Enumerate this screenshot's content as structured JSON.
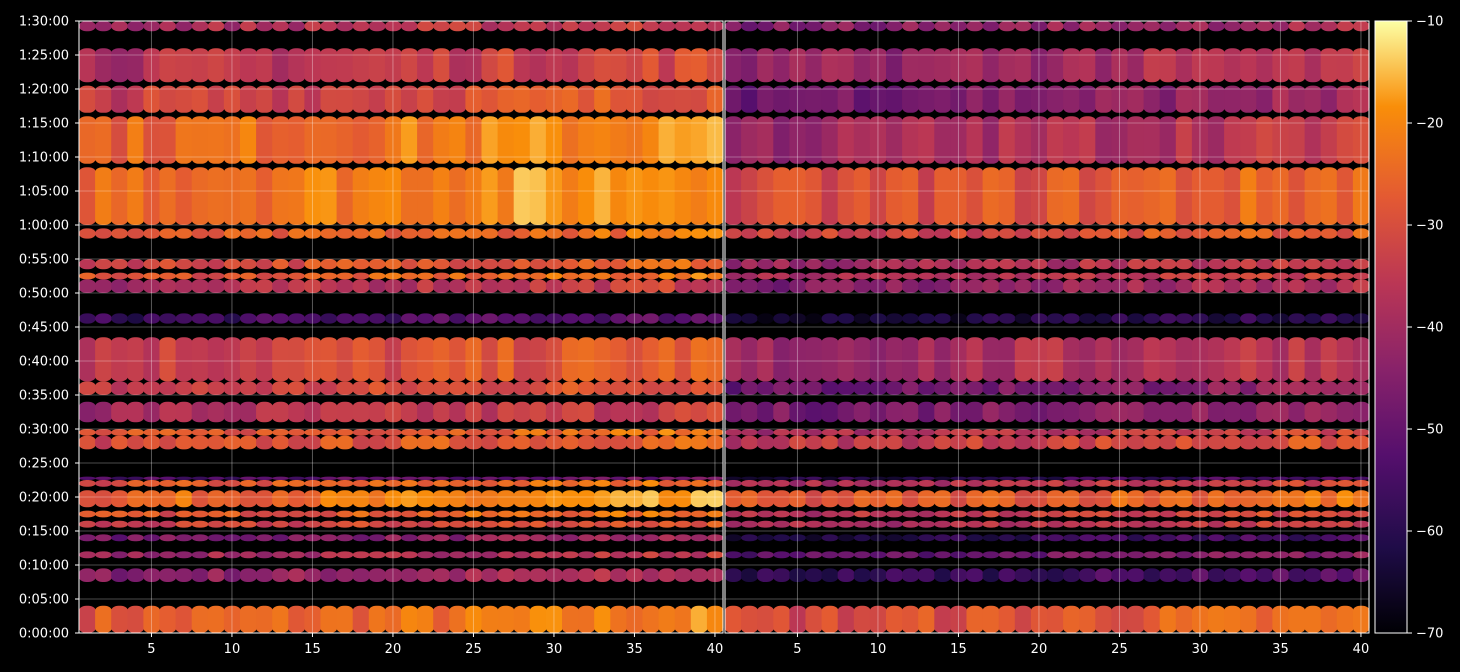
{
  "chart_data": {
    "type": "heatmap",
    "title": "",
    "panels": [
      {
        "name": "",
        "x": {
          "min": 1,
          "max": 40,
          "ticks": [
            5,
            10,
            15,
            20,
            25,
            30,
            35,
            40
          ]
        }
      },
      {
        "name": "",
        "x": {
          "min": 1,
          "max": 40,
          "ticks": [
            5,
            10,
            15,
            20,
            25,
            30,
            35,
            40
          ]
        }
      }
    ],
    "y": {
      "min_seconds": 0,
      "max_seconds": 5400,
      "tick_labels": [
        "0:00:00",
        "0:05:00",
        "0:10:00",
        "0:15:00",
        "0:20:00",
        "0:25:00",
        "0:30:00",
        "0:35:00",
        "0:40:00",
        "0:45:00",
        "0:50:00",
        "0:55:00",
        "1:00:00",
        "1:05:00",
        "1:10:00",
        "1:15:00",
        "1:20:00",
        "1:25:00",
        "1:30:00"
      ]
    },
    "colorbar": {
      "min": -70,
      "max": -10,
      "ticks": [
        -10,
        -20,
        -30,
        -40,
        -50,
        -60,
        -70
      ],
      "colormap": "inferno"
    },
    "grid": true,
    "row_bands": [
      {
        "start": "0:00:00",
        "end": "0:04:00",
        "level_left": -28,
        "level_right": -32
      },
      {
        "start": "0:07:30",
        "end": "0:09:30",
        "level_left": -45,
        "level_right": -60
      },
      {
        "start": "0:11:00",
        "end": "0:12:00",
        "level_left": -42,
        "level_right": -52
      },
      {
        "start": "0:13:30",
        "end": "0:14:30",
        "level_left": -48,
        "level_right": -62
      },
      {
        "start": "0:15:30",
        "end": "0:16:30",
        "level_left": -35,
        "level_right": -40
      },
      {
        "start": "0:17:00",
        "end": "0:18:00",
        "level_left": -30,
        "level_right": -38
      },
      {
        "start": "0:18:30",
        "end": "0:21:00",
        "level_left": -26,
        "level_right": -30
      },
      {
        "start": "0:21:30",
        "end": "0:22:30",
        "level_left": -30,
        "level_right": -40
      },
      {
        "start": "0:22:30",
        "end": "0:23:00",
        "level_left": -55,
        "level_right": -62
      },
      {
        "start": "0:27:00",
        "end": "0:29:00",
        "level_left": -32,
        "level_right": -36
      },
      {
        "start": "0:29:00",
        "end": "0:30:00",
        "level_left": -30,
        "level_right": -40
      },
      {
        "start": "0:31:00",
        "end": "0:34:00",
        "level_left": -40,
        "level_right": -48
      },
      {
        "start": "0:35:00",
        "end": "0:37:00",
        "level_left": -35,
        "level_right": -50
      },
      {
        "start": "0:37:00",
        "end": "0:43:30",
        "level_left": -34,
        "level_right": -42
      },
      {
        "start": "0:45:30",
        "end": "0:47:00",
        "level_left": -58,
        "level_right": -66
      },
      {
        "start": "0:50:00",
        "end": "0:52:00",
        "level_left": -40,
        "level_right": -46
      },
      {
        "start": "0:52:00",
        "end": "0:53:00",
        "level_left": -30,
        "level_right": -40
      },
      {
        "start": "0:53:30",
        "end": "0:55:00",
        "level_left": -32,
        "level_right": -42
      },
      {
        "start": "0:58:00",
        "end": "0:59:30",
        "level_left": -30,
        "level_right": -34
      },
      {
        "start": "1:00:00",
        "end": "1:08:30",
        "level_left": -24,
        "level_right": -32
      },
      {
        "start": "1:09:00",
        "end": "1:16:00",
        "level_left": -26,
        "level_right": -42
      },
      {
        "start": "1:16:30",
        "end": "1:20:30",
        "level_left": -34,
        "level_right": -48
      },
      {
        "start": "1:21:00",
        "end": "1:26:00",
        "level_left": -38,
        "level_right": -44
      },
      {
        "start": "1:28:30",
        "end": "1:30:00",
        "level_left": -40,
        "level_right": -46
      }
    ]
  }
}
